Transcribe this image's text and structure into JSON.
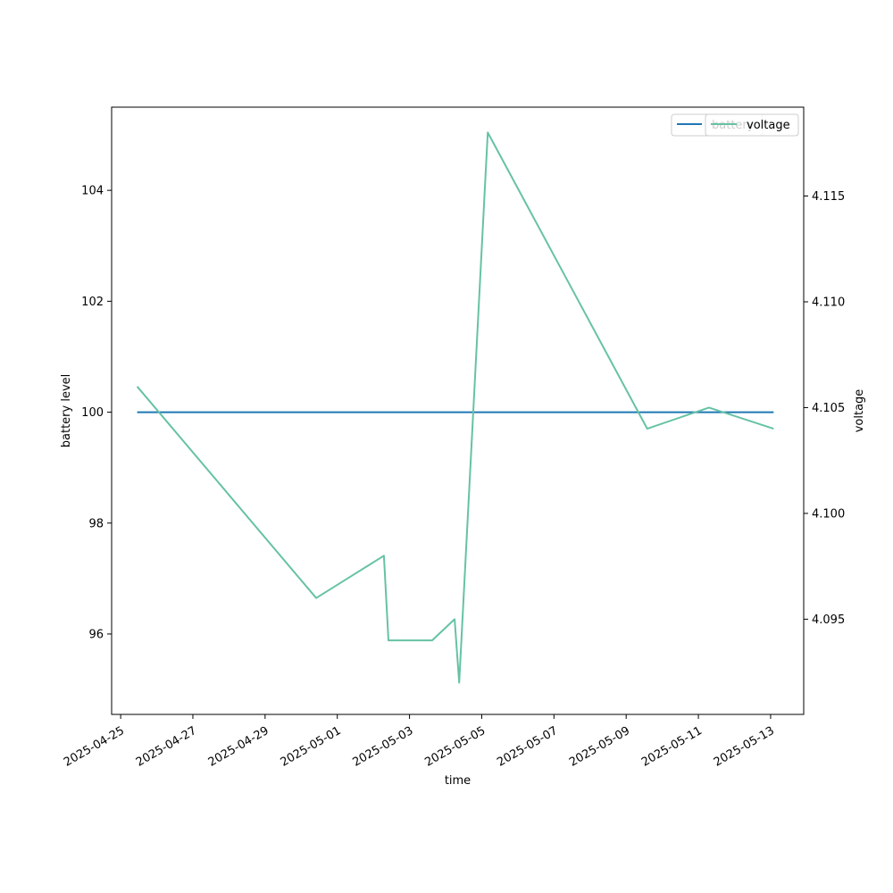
{
  "chart_data": {
    "type": "line",
    "xlabel": "time",
    "ylabel_left": "battery level",
    "ylabel_right": "voltage",
    "xlim": [
      "2025-04-24T18:00",
      "2025-05-13T22:00"
    ],
    "ylim_left": [
      94.55,
      105.5
    ],
    "ylim_right": [
      4.0905,
      4.1192
    ],
    "x_ticks": [
      "2025-04-25",
      "2025-04-27",
      "2025-04-29",
      "2025-05-01",
      "2025-05-03",
      "2025-05-05",
      "2025-05-07",
      "2025-05-09",
      "2025-05-11",
      "2025-05-13"
    ],
    "y_ticks_left": [
      96,
      98,
      100,
      102,
      104
    ],
    "y_ticks_right": [
      4.095,
      4.1,
      4.105,
      4.11,
      4.115
    ],
    "y_tick_labels_right": [
      "4.095",
      "4.100",
      "4.105",
      "4.110",
      "4.115"
    ],
    "grid": false,
    "legend_placement": "top-right",
    "series": [
      {
        "name": "battery",
        "axis": "left",
        "color": "#1f77b4",
        "x": [
          "2025-04-25T11:00",
          "2025-05-13T02:00"
        ],
        "y": [
          100,
          100
        ]
      },
      {
        "name": "voltage",
        "axis": "right",
        "color": "#66c2a5",
        "x": [
          "2025-04-25T11:00",
          "2025-04-30T10:00",
          "2025-05-02T07:00",
          "2025-05-02T10:00",
          "2025-05-03T15:00",
          "2025-05-04T06:00",
          "2025-05-04T09:00",
          "2025-05-05T04:00",
          "2025-05-09T14:00",
          "2025-05-11T07:00",
          "2025-05-13T02:00"
        ],
        "y": [
          4.106,
          4.096,
          4.098,
          4.094,
          4.094,
          4.095,
          4.092,
          4.118,
          4.104,
          4.105,
          4.104
        ]
      }
    ]
  }
}
